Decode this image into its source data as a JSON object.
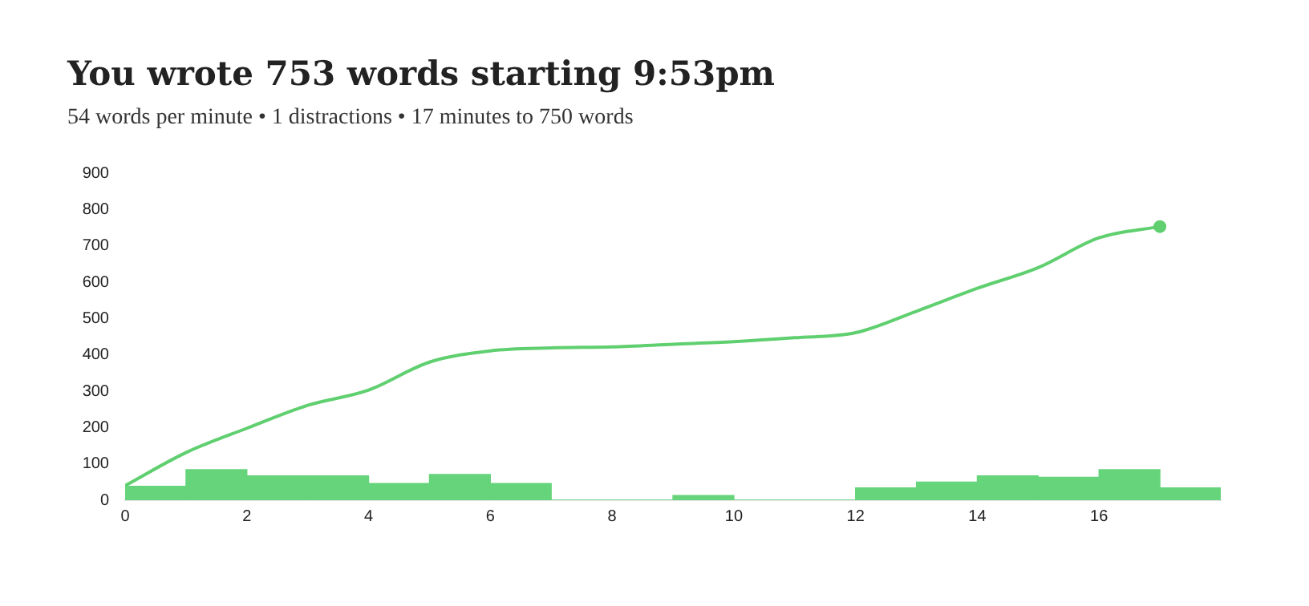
{
  "chart_data": {
    "type": "histogram",
    "title": "You wrote 753 words starting 9:53pm",
    "subtitle": "54 words per minute • 1 distractions • 17 minutes to 750 words",
    "xlim": [
      0,
      18
    ],
    "xticks": [
      0,
      2,
      4,
      6,
      8,
      10,
      12,
      14,
      16
    ],
    "ylim": [
      0,
      900
    ],
    "yticks": [
      0,
      100,
      200,
      300,
      400,
      500,
      600,
      700,
      800,
      900
    ],
    "grid": false,
    "legend": false,
    "series": [
      {
        "color": "#66d47a",
        "bins": [
          0,
          1,
          2,
          3,
          4,
          5,
          6,
          7,
          8,
          9,
          10,
          11,
          12,
          13,
          14,
          15,
          16,
          17,
          18
        ],
        "values": [
          38,
          84,
          67,
          67,
          46,
          71,
          46,
          0,
          0,
          13,
          0,
          0,
          34,
          50,
          67,
          63,
          84,
          34
        ]
      },
      {
        "type": "line",
        "color": "#5fcf6f",
        "marker": "none",
        "x": [
          0,
          1,
          2,
          3,
          4,
          5,
          6,
          7,
          8,
          9,
          10,
          11,
          12,
          13,
          14,
          15,
          16,
          17
        ],
        "values": [
          40,
          131,
          198,
          261,
          303,
          380,
          411,
          419,
          422,
          429,
          436,
          447,
          461,
          520,
          583,
          640,
          722,
          753
        ]
      },
      {
        "type": "scatter",
        "color": "#5fcf6f",
        "marker": "circle",
        "x": [
          17
        ],
        "values": [
          753
        ]
      }
    ]
  }
}
